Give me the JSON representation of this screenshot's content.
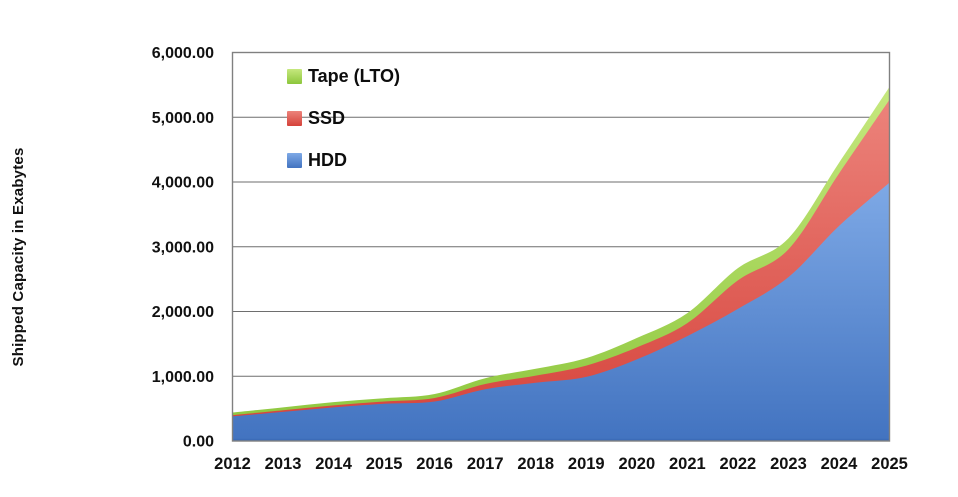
{
  "chart_data": {
    "type": "area",
    "stacked": true,
    "title": "",
    "ylabel": "Shipped Capacity in Exabytes",
    "xlabel": "",
    "ylim": [
      0,
      6000
    ],
    "ytick_step": 1000,
    "ytick_labels": [
      "0.00",
      "1,000.00",
      "2,000.00",
      "3,000.00",
      "4,000.00",
      "5,000.00",
      "6,000.00"
    ],
    "grid": true,
    "legend_position": "top-left-inside",
    "legend_order": [
      "Tape (LTO)",
      "SSD",
      "HDD"
    ],
    "categories": [
      2012,
      2013,
      2014,
      2015,
      2016,
      2017,
      2018,
      2019,
      2020,
      2021,
      2022,
      2023,
      2024,
      2025
    ],
    "series": [
      {
        "name": "HDD",
        "key": "hdd",
        "values": [
          380,
          450,
          520,
          575,
          610,
          800,
          900,
          990,
          1260,
          1620,
          2040,
          2530,
          3320,
          3990
        ],
        "color_top": "#7ea9e6",
        "color_bottom": "#4273c0"
      },
      {
        "name": "SSD",
        "key": "ssd",
        "values": [
          20,
          25,
          30,
          35,
          55,
          80,
          110,
          175,
          185,
          200,
          440,
          430,
          810,
          1280
        ],
        "color_top": "#ec837b",
        "color_bottom": "#d5423a"
      },
      {
        "name": "Tape (LTO)",
        "key": "tape-lto",
        "values": [
          40,
          45,
          50,
          50,
          60,
          90,
          105,
          115,
          145,
          155,
          190,
          170,
          165,
          200
        ],
        "color_top": "#c6e87e",
        "color_bottom": "#8cc63c"
      }
    ],
    "stacked_totals": [
      440,
      520,
      600,
      660,
      725,
      970,
      1115,
      1280,
      1590,
      1975,
      2670,
      3130,
      4295,
      5470
    ],
    "colors": {
      "gridline": "#6e6e6e",
      "plot_border": "#808080",
      "baseline_accent": "#3c6cb8",
      "axis_text": "#111111"
    }
  }
}
